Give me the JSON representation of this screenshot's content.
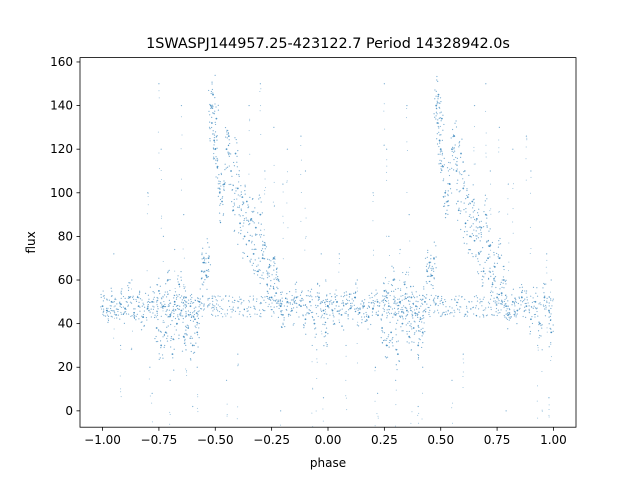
{
  "chart_data": {
    "type": "scatter",
    "title": "1SWASPJ144957.25-423122.7 Period 14328942.0s",
    "xlabel": "phase",
    "ylabel": "flux",
    "xlim": [
      -1.1,
      1.1
    ],
    "ylim": [
      -7.5,
      162
    ],
    "xticks": [
      -1.0,
      -0.75,
      -0.5,
      -0.25,
      0.0,
      0.25,
      0.5,
      0.75,
      1.0
    ],
    "xtick_labels": [
      "−1.00",
      "−0.75",
      "−0.50",
      "−0.25",
      "0.00",
      "0.25",
      "0.50",
      "0.75",
      "1.00"
    ],
    "yticks": [
      0,
      20,
      40,
      60,
      80,
      100,
      120,
      140,
      160
    ],
    "ytick_labels": [
      "0",
      "20",
      "40",
      "60",
      "80",
      "100",
      "120",
      "140",
      "160"
    ],
    "grid": false,
    "marker_color": "#1f77b4",
    "series": [
      {
        "phase_fold": true,
        "baseline_flux": 48,
        "points": [
          [
            0.0,
            48
          ],
          [
            0.02,
            46
          ],
          [
            0.04,
            50
          ],
          [
            0.06,
            44
          ],
          [
            0.08,
            49
          ],
          [
            0.1,
            47
          ],
          [
            0.12,
            52
          ],
          [
            0.14,
            45
          ],
          [
            0.16,
            48
          ],
          [
            0.18,
            43
          ],
          [
            0.2,
            47
          ],
          [
            0.22,
            50
          ],
          [
            0.24,
            38
          ],
          [
            0.25,
            55
          ],
          [
            0.26,
            30
          ],
          [
            0.27,
            48
          ],
          [
            0.28,
            36
          ],
          [
            0.29,
            60
          ],
          [
            0.3,
            44
          ],
          [
            0.31,
            26
          ],
          [
            0.32,
            50
          ],
          [
            0.33,
            40
          ],
          [
            0.34,
            58
          ],
          [
            0.35,
            46
          ],
          [
            0.36,
            34
          ],
          [
            0.37,
            52
          ],
          [
            0.38,
            38
          ],
          [
            0.39,
            48
          ],
          [
            0.4,
            30
          ],
          [
            0.41,
            42
          ],
          [
            0.42,
            36
          ],
          [
            0.43,
            50
          ],
          [
            0.44,
            64
          ],
          [
            0.45,
            68
          ],
          [
            0.46,
            62
          ],
          [
            0.47,
            70
          ],
          [
            0.48,
            140
          ],
          [
            0.485,
            132
          ],
          [
            0.49,
            145
          ],
          [
            0.495,
            124
          ],
          [
            0.5,
            120
          ],
          [
            0.505,
            134
          ],
          [
            0.51,
            112
          ],
          [
            0.52,
            100
          ],
          [
            0.53,
            96
          ],
          [
            0.54,
            104
          ],
          [
            0.55,
            120
          ],
          [
            0.56,
            126
          ],
          [
            0.57,
            110
          ],
          [
            0.58,
            92
          ],
          [
            0.59,
            118
          ],
          [
            0.6,
            102
          ],
          [
            0.61,
            86
          ],
          [
            0.62,
            98
          ],
          [
            0.63,
            80
          ],
          [
            0.64,
            96
          ],
          [
            0.65,
            78
          ],
          [
            0.66,
            88
          ],
          [
            0.67,
            72
          ],
          [
            0.68,
            84
          ],
          [
            0.69,
            64
          ],
          [
            0.7,
            90
          ],
          [
            0.71,
            70
          ],
          [
            0.72,
            76
          ],
          [
            0.73,
            58
          ],
          [
            0.74,
            66
          ],
          [
            0.75,
            52
          ],
          [
            0.76,
            70
          ],
          [
            0.77,
            54
          ],
          [
            0.78,
            60
          ],
          [
            0.79,
            48
          ],
          [
            0.8,
            44
          ],
          [
            0.82,
            50
          ],
          [
            0.84,
            46
          ],
          [
            0.86,
            52
          ],
          [
            0.88,
            48
          ],
          [
            0.9,
            42
          ],
          [
            0.92,
            50
          ],
          [
            0.94,
            40
          ],
          [
            0.96,
            52
          ],
          [
            0.98,
            46
          ],
          [
            0.99,
            36
          ]
        ],
        "sparse_outliers": [
          [
            0.05,
            72
          ],
          [
            0.08,
            30
          ],
          [
            0.13,
            60
          ],
          [
            0.2,
            100
          ],
          [
            0.21,
            20
          ],
          [
            0.22,
            8
          ],
          [
            0.25,
            150
          ],
          [
            0.26,
            120
          ],
          [
            0.27,
            80
          ],
          [
            0.3,
            14
          ],
          [
            0.32,
            74
          ],
          [
            0.35,
            140
          ],
          [
            0.36,
            90
          ],
          [
            0.37,
            28
          ],
          [
            0.4,
            2
          ],
          [
            0.42,
            20
          ],
          [
            0.55,
            14
          ],
          [
            0.6,
            26
          ],
          [
            0.65,
            140
          ],
          [
            0.7,
            150
          ],
          [
            0.72,
            110
          ],
          [
            0.76,
            130
          ],
          [
            0.79,
            0
          ],
          [
            0.8,
            104
          ],
          [
            0.82,
            120
          ],
          [
            0.88,
            126
          ],
          [
            0.9,
            110
          ],
          [
            0.93,
            30
          ],
          [
            0.95,
            28
          ],
          [
            0.97,
            72
          ],
          [
            0.98,
            6
          ],
          [
            0.99,
            60
          ]
        ]
      }
    ]
  }
}
